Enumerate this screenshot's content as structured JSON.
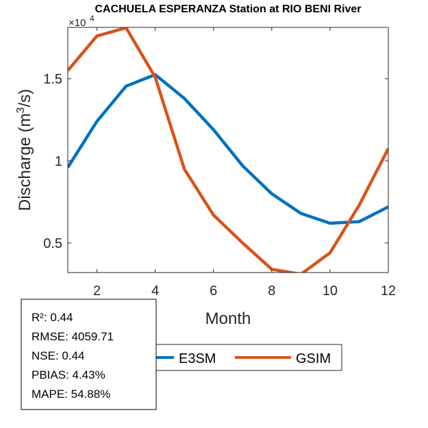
{
  "chart_data": {
    "type": "line",
    "title": "CACHUELA ESPERANZA  Station at  RIO BENI  River",
    "xlabel": "Month",
    "ylabel_main": "Discharge (m",
    "ylabel_sup": "3",
    "ylabel_end": "/s)",
    "y_exponent_base": "×10",
    "y_exponent": "4",
    "xlim": [
      1,
      12
    ],
    "ylim": [
      0.32,
      1.8125
    ],
    "xticks": [
      2,
      4,
      6,
      8,
      10,
      12
    ],
    "xtick_labels": [
      "2",
      "4",
      "6",
      "8",
      "10",
      "12"
    ],
    "yticks": [
      0.5,
      1,
      1.5
    ],
    "ytick_labels": [
      "0.5",
      "1",
      "1.5"
    ],
    "x": [
      1,
      2,
      3,
      4,
      5,
      6,
      7,
      8,
      9,
      10,
      11,
      12
    ],
    "series": [
      {
        "name": "E3SM",
        "color": "#0072BD",
        "values": [
          0.96,
          1.24,
          1.455,
          1.525,
          1.38,
          1.19,
          0.97,
          0.8,
          0.68,
          0.62,
          0.63,
          0.72
        ]
      },
      {
        "name": "GSIM",
        "color": "#D95319",
        "values": [
          1.55,
          1.76,
          1.81,
          1.51,
          0.95,
          0.67,
          0.5,
          0.34,
          0.31,
          0.44,
          0.73,
          1.075
        ]
      }
    ],
    "legend_placement": "bottom",
    "stats": [
      "R²: 0.44",
      "RMSE: 4059.71",
      "NSE: 0.44",
      "PBIAS: 4.43%",
      "MAPE: 54.88%"
    ]
  }
}
